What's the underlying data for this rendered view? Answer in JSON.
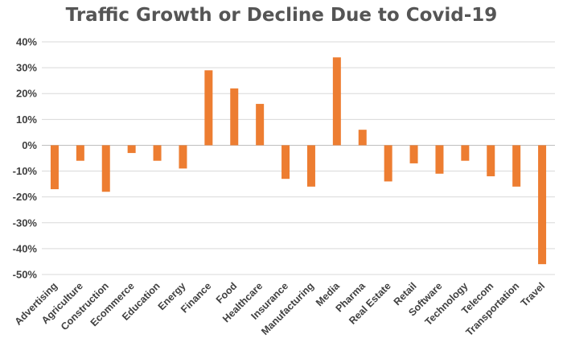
{
  "chart_data": {
    "type": "bar",
    "title": "Traffic Growth or Decline Due to Covid-19",
    "xlabel": "",
    "ylabel": "",
    "ylim": [
      -50,
      40
    ],
    "yticks": [
      "40%",
      "30%",
      "20%",
      "10%",
      "0%",
      "-10%",
      "-20%",
      "-30%",
      "-40%",
      "-50%"
    ],
    "unit": "%",
    "grid": true,
    "bar_color": "#ed7d31",
    "categories": [
      "Advertising",
      "Agriculture",
      "Construction",
      "Ecommerce",
      "Education",
      "Energy",
      "Finance",
      "Food",
      "Healthcare",
      "Insurance",
      "Manufacturing",
      "Media",
      "Pharma",
      "Real Estate",
      "Retail",
      "Software",
      "Technology",
      "Telecom",
      "Transportation",
      "Travel"
    ],
    "values": [
      -17,
      -6,
      -18,
      -3,
      -6,
      -9,
      29,
      22,
      16,
      -13,
      -16,
      34,
      6,
      -14,
      -7,
      -11,
      -6,
      -12,
      -16,
      -46
    ]
  }
}
